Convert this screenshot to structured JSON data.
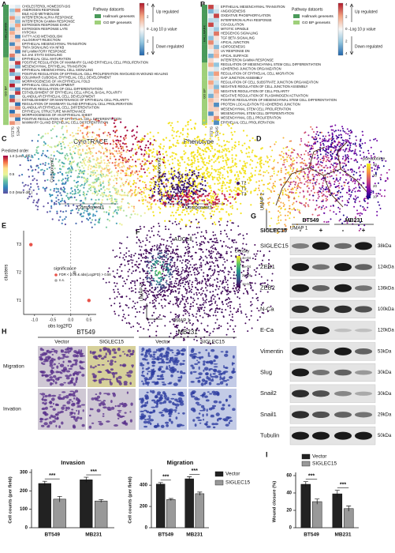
{
  "panels": {
    "A": {
      "letter": "A",
      "groups": [
        "HALLMARK",
        "GO BP"
      ],
      "hallmark_rows": [
        "CHOLESTEROL HOMEOSTASIS",
        "ANDROGEN RESPONSE",
        "BILE ACID METABOLISM",
        "INTERFERON ALPHA RESPONSE",
        "INTERFERON GAMMA RESPONSE",
        "ESTROGEN RESPONSE EARLY",
        "ESTROGEN RESPONSE LATE",
        "HYPOXIA",
        "FATTY ACID METABOLISM",
        "ALLOGRAFT REJECTION",
        "EPITHELIAL MESENCHYMAL TRANSITION",
        "TNFA SIGNALING VIA NFKB",
        "INFLAMMATORY RESPONSE",
        "IL6 JAK STAT3 SIGNALING"
      ],
      "gobp_rows": [
        "EPITHELIAL CELL MATURATION",
        "POSITIVE REGULATION OF MAMMARY GLAND EPITHELIAL CELL PROLIFERATION",
        "MESENCHYMAL EPITHELIAL TRANSITION",
        "EPITHELIAL MESENCHYMAL CELL SIGNALING",
        "POSITIVE REGULATION OF EPITHELIAL CELL PROLIFERATION INVOLVED IN WOUND HEALING",
        "COLUMNAR CUBOIDAL EPITHELIAL CELL DEVELOPMENT",
        "MORPHOGENESIS OF AN EPITHELIAL FOLD",
        "EPITHELIAL CELL DEVELOPMENT",
        "POSITIVE REGULATION OF CELL DIFFERENTIATION",
        "ESTABLISHMENT OF EPITHELIAL CELL APICAL BASAL POLARITY",
        "GLANDULAR EPITHELIAL CELL DEVELOPMENT",
        "ESTABLISHMENT OR MAINTENANCE OF EPITHELIAL CELL POLARITY",
        "REGULATION OF MAMMARY GLAND EPITHELIAL CELL PROLIFERATION",
        "GLANDULAR EPITHELIAL CELL DIFFERENTIATION",
        "EPITHELIAL STRUCTURE MAINTENANCE",
        "MORPHOGENESIS OF AN EPITHELIAL SHEET",
        "POSITIVE REGULATION OF EPITHELIAL CELL DIFFERENTIATION",
        "MAMMARY GLAND EPITHELIAL CELL DIFFERENTIATION"
      ],
      "columns": [
        "SLE15",
        "SHES"
      ],
      "legend_title": "Pathway datasets",
      "legend_items": [
        "Hallmark genesets",
        "GO BP genesets"
      ],
      "scale_ticks": [
        "4",
        "2",
        "0",
        "2",
        "4"
      ],
      "scale_top": "Up regulated",
      "scale_title": "-Log 10 p value",
      "scale_bottom": "Down regulated"
    },
    "B": {
      "letter": "B",
      "groups": [
        "HALLMARK",
        "GO BP"
      ],
      "hallmark_rows": [
        "EPITHELIAL MESENCHYMAL TRANSITION",
        "ANGIOGENESIS",
        "OXIDATIVE PHOSPHORYLATION",
        "INTERFERON ALPHA RESPONSE",
        "COAGULATION",
        "MITOTIC SPINDLE",
        "HEDGEHOG SIGNALING",
        "TGF BETA SIGNALING",
        "APICAL JUNCTION",
        "ADIPOGENESIS",
        "UV RESPONSE DN",
        "APICAL SURFACE",
        "INTERFERON GAMMA RESPONSE"
      ],
      "gobp_rows": [
        "REGULATION OF MESENCHYMAL STEM CELL DIFFERENTIATION",
        "ADHERENS JUNCTION ORGANIZATION",
        "REGULATION OF EPITHELIAL CELL MIGRATION",
        "GAP JUNCTION ASSEMBLY",
        "REGULATION OF CELL SUBSTRATE JUNCTION ORGANIZATION",
        "NEGATIVE REGULATION OF CELL JUNCTION ASSEMBLY",
        "NEGATIVE REGULATION OF CELL POLARITY",
        "NEGATIVE REGULATION OF PLASMINOGEN ACTIVATION",
        "POSITIVE REGULATION OF MESENCHYMAL STEM CELL DIFFERENTIATION",
        "PROTEIN LOCALIZATION TO ADHERENS JUNCTION",
        "MESENCHYMAL STEM CELL PROLIFERATION",
        "MESENCHYMAL STEM CELL DIFFERENTIATION",
        "MESENCHYMAL CELL PROLIFERATION",
        "EPITHELIAL CELL PROLIFERATION"
      ],
      "columns": [
        "SLE15",
        "SHES"
      ],
      "legend_title": "Pathway datasets",
      "legend_items": [
        "Hallmark genesets",
        "GO BP genesets"
      ],
      "scale_ticks": [
        "4",
        "2",
        "0",
        "2",
        "4"
      ],
      "scale_top": "Up regulated",
      "scale_title": "-Log 10 p value",
      "scale_bottom": "Down regulated"
    },
    "C": {
      "letter": "C",
      "cyto_title": "CytoTRACE",
      "pheno_title": "Phenotype",
      "xlabel": "Component1",
      "ylabel": "Component2",
      "order_title": "Predicted order",
      "order_ticks": [
        "1.0 (Less diff.)",
        "0.5",
        "0.0 (More diff.)"
      ],
      "phenotypes": [
        "T2",
        "T1",
        "T3"
      ]
    },
    "D": {
      "letter": "D",
      "xlabel": "UMAP 1",
      "ylabel": "UMAP 2",
      "legend_title": "pseudotime",
      "legend_ticks": [
        "40",
        "30",
        "20",
        "10"
      ]
    },
    "F": {
      "letter": "F",
      "title": "AUCell",
      "xlabel": "UMAP 1",
      "ylabel": "UMAP 2",
      "legend_title": "Density",
      "legend_ticks": [
        "4e-04",
        "3e-04",
        "2e-04",
        "1e-04"
      ]
    },
    "G": {
      "letter": "G",
      "lines": [
        "BT549",
        "MB231"
      ],
      "treatment": "SIGLEC15",
      "signs": [
        "-",
        "+",
        "-",
        "+"
      ],
      "proteins": [
        {
          "name": "SIGLEC15",
          "size": "38kDa"
        },
        {
          "name": "ZEB1",
          "size": "124kDa"
        },
        {
          "name": "ZEB2",
          "size": "136kDa"
        },
        {
          "name": "N-Ca",
          "size": "100kDa"
        },
        {
          "name": "E-Ca",
          "size": "120kDa"
        },
        {
          "name": "Vimentin",
          "size": "53kDa"
        },
        {
          "name": "Slug",
          "size": "30kDa"
        },
        {
          "name": "Snail2",
          "size": "30kDa"
        },
        {
          "name": "Snail1",
          "size": "29kDa"
        },
        {
          "name": "Tubulin",
          "size": "50kDa"
        }
      ]
    },
    "H": {
      "letter": "H",
      "lines": [
        "BT549",
        "MB231"
      ],
      "conditions": [
        "Vector",
        "SIGLEC15"
      ],
      "assays": [
        "Migration",
        "Invation"
      ]
    }
  },
  "chart_data": [
    {
      "type": "dot",
      "letter": "E",
      "ylabel": "clusters",
      "xlabel": "obs log2FD",
      "categories": [
        "T1",
        "T2",
        "T3"
      ],
      "values": [
        0.5,
        0.1,
        -1.1
      ],
      "colors": [
        "#e8534a",
        "#aaaaaa",
        "#e8534a"
      ],
      "xlim": [
        -1.3,
        0.7
      ],
      "xticks": [
        {
          "value": -1,
          "label": "-1.0"
        },
        -0.5,
        {
          "value": 0,
          "label": "0.0"
        },
        0.5
      ],
      "legend": {
        "title": "significance",
        "items": [
          {
            "label": "FDR < 0.05 & abs(Log2FD) > 0.58",
            "color": "#e8534a"
          },
          {
            "label": "n.s.",
            "color": "#aaaaaa"
          }
        ]
      }
    },
    {
      "type": "bar",
      "title": "Invasion",
      "ylabel": "Cell counts (per field)",
      "categories": [
        "BT549",
        "MB231"
      ],
      "series": [
        {
          "name": "Vector",
          "color": "#222222",
          "values": [
            240,
            260
          ],
          "errors": [
            12,
            14
          ]
        },
        {
          "name": "SIGLEC15",
          "color": "#999999",
          "values": [
            155,
            145
          ],
          "errors": [
            15,
            8
          ]
        }
      ],
      "ylim": [
        0,
        300
      ],
      "yticks": [
        0,
        100,
        200,
        300
      ],
      "annotations": [
        "***",
        "***"
      ],
      "legend": "none"
    },
    {
      "type": "bar",
      "title": "Migration",
      "ylabel": "Cell counts (per field)",
      "categories": [
        "BT549",
        "MB231"
      ],
      "series": [
        {
          "name": "Vector",
          "color": "#222222",
          "values": [
            410,
            460
          ],
          "errors": [
            15,
            20
          ]
        },
        {
          "name": "SIGLEC15",
          "color": "#999999",
          "values": [
            265,
            320
          ],
          "errors": [
            10,
            15
          ]
        }
      ],
      "ylim": [
        0,
        520
      ],
      "yticks": [
        0,
        200,
        400
      ],
      "annotations": [
        "***",
        "***"
      ],
      "legend": "right"
    },
    {
      "type": "bar",
      "letter": "I",
      "ylabel": "Wound closure (%)",
      "categories": [
        "BT549",
        "MB231"
      ],
      "series": [
        {
          "name": "Vector",
          "color": "#222222",
          "values": [
            50,
            39
          ],
          "errors": [
            3,
            4
          ]
        },
        {
          "name": "SIGLEC15",
          "color": "#999999",
          "values": [
            30,
            22
          ],
          "errors": [
            3,
            3
          ]
        }
      ],
      "ylim": [
        0,
        60
      ],
      "yticks": [
        0,
        20,
        40,
        60
      ],
      "annotations": [
        "***",
        "***"
      ],
      "legend": "top"
    }
  ]
}
